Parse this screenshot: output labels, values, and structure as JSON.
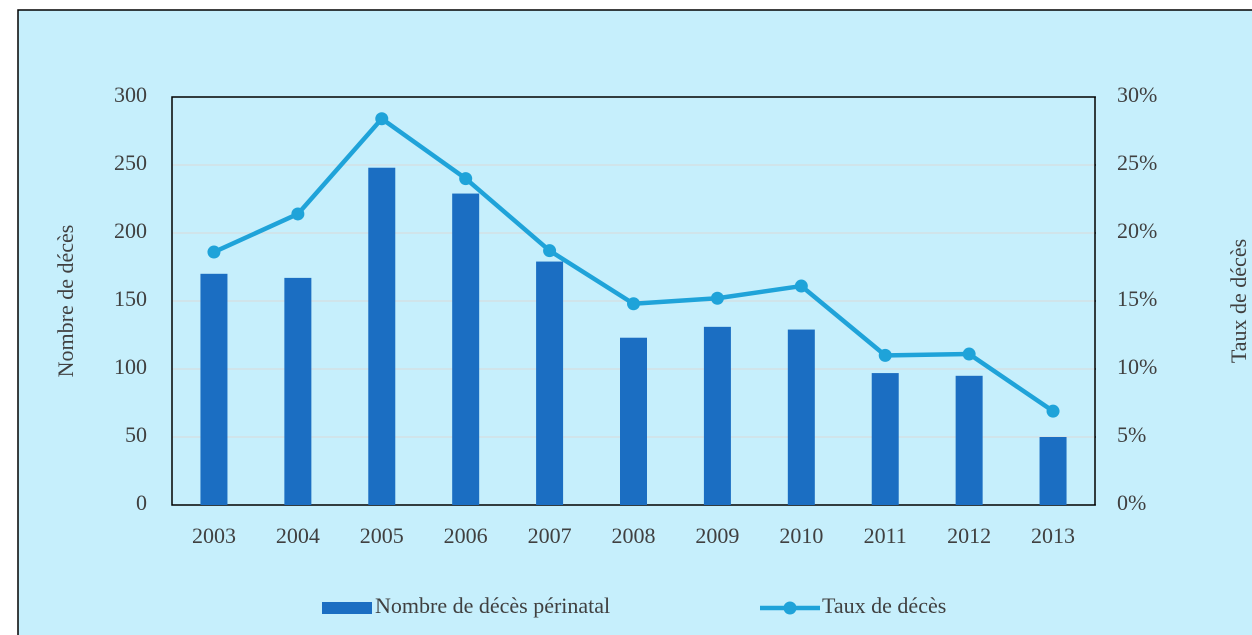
{
  "chart_data": {
    "type": "bar_line",
    "categories": [
      "2003",
      "2004",
      "2005",
      "2006",
      "2007",
      "2008",
      "2009",
      "2010",
      "2011",
      "2012",
      "2013"
    ],
    "series": [
      {
        "name": "Nombre de décès périnatal",
        "type": "bar",
        "color": "#1b6ec2",
        "values": [
          170,
          167,
          248,
          229,
          179,
          123,
          131,
          129,
          97,
          95,
          50
        ]
      },
      {
        "name": "Taux de décès",
        "type": "line",
        "axis": "y2",
        "color": "#1fa3d9",
        "values": [
          18.6,
          21.4,
          28.4,
          24.0,
          18.7,
          14.8,
          15.2,
          16.1,
          11.0,
          11.1,
          6.9
        ]
      }
    ],
    "ylabel": "Nombre de décès",
    "y2label": "Taux de décès",
    "ylim": [
      0,
      300
    ],
    "yticks": [
      0,
      50,
      100,
      150,
      200,
      250,
      300
    ],
    "y2lim": [
      0,
      30
    ],
    "y2ticks": [
      {
        "value": 0,
        "label": "0%"
      },
      {
        "value": 5,
        "label": "5%"
      },
      {
        "value": 10,
        "label": "10%"
      },
      {
        "value": 15,
        "label": "15%"
      },
      {
        "value": 20,
        "label": "20%"
      },
      {
        "value": 25,
        "label": "25%"
      },
      {
        "value": 30,
        "label": "30%"
      }
    ],
    "grid": true,
    "legend": "bottom"
  }
}
